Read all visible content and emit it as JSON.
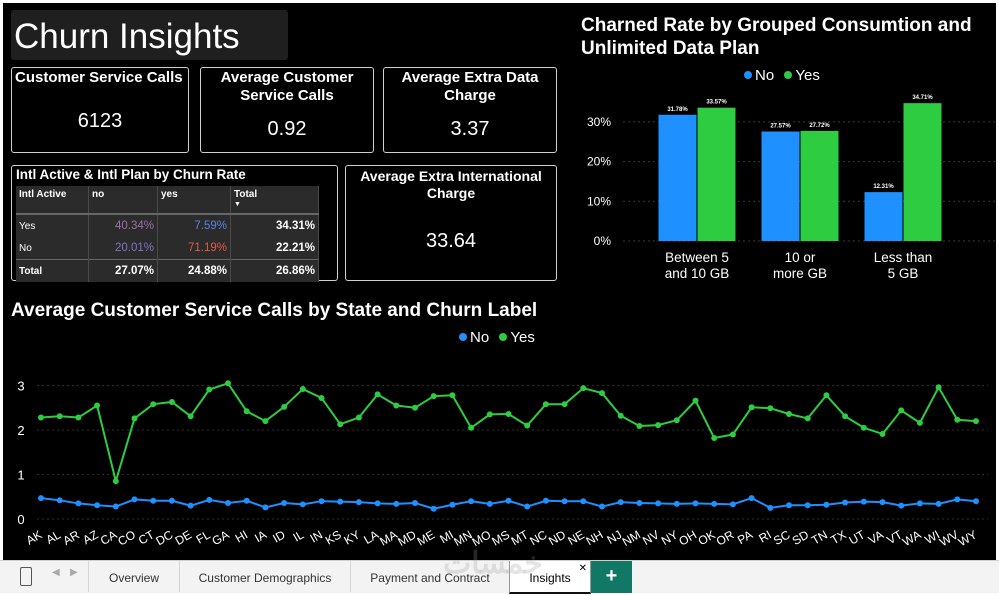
{
  "header": {
    "title": "Churn Insights"
  },
  "kpis": {
    "csc": {
      "label": "Customer Service Calls",
      "value": "6123"
    },
    "avg_csc": {
      "label": "Average Customer Service Calls",
      "value": "0.92"
    },
    "avg_extra_data": {
      "label": "Average Extra Data Charge",
      "value": "3.37"
    },
    "avg_extra_intl": {
      "label": "Average Extra International Charge",
      "value": "33.64"
    }
  },
  "matrix": {
    "title": "Intl Active & Intl Plan by Churn Rate",
    "headers": [
      "Intl Active",
      "no",
      "yes",
      "Total"
    ],
    "rows": [
      {
        "label": "Yes",
        "no": "40.34%",
        "yes": "7.59%",
        "total": "34.31%"
      },
      {
        "label": "No",
        "no": "20.01%",
        "yes": "71.19%",
        "total": "22.21%"
      },
      {
        "label": "Total",
        "no": "27.07%",
        "yes": "24.88%",
        "total": "26.86%"
      }
    ],
    "colors": {
      "no_yes": "#9b6fa8",
      "yes_yes": "#5a82e0",
      "no_no": "#7c74c9",
      "yes_no": "#e45a4a"
    }
  },
  "colors": {
    "no": "#1e90ff",
    "yes": "#2ecc40"
  },
  "chart_data": [
    {
      "type": "bar",
      "title": "Charned Rate by Grouped Consumtion and Unlimited Data Plan",
      "legend": [
        "No",
        "Yes"
      ],
      "categories": [
        "Between 5 and 10 GB",
        "10 or more GB",
        "Less than 5 GB"
      ],
      "series": [
        {
          "name": "No",
          "values": [
            31.78,
            27.57,
            12.31
          ],
          "labels": [
            "31.78%",
            "27.57%",
            "12.31%"
          ]
        },
        {
          "name": "Yes",
          "values": [
            33.57,
            27.72,
            34.71
          ],
          "labels": [
            "33.57%",
            "27.72%",
            "34.71%"
          ]
        }
      ],
      "yticks": [
        "0%",
        "10%",
        "20%",
        "30%"
      ],
      "ylim": [
        0,
        35
      ]
    },
    {
      "type": "line",
      "title": "Average Customer Service Calls by State and Churn Label",
      "legend": [
        "No",
        "Yes"
      ],
      "x": [
        "AK",
        "AL",
        "AR",
        "AZ",
        "CA",
        "CO",
        "CT",
        "DC",
        "DE",
        "FL",
        "GA",
        "HI",
        "IA",
        "ID",
        "IL",
        "IN",
        "KS",
        "KY",
        "LA",
        "MA",
        "MD",
        "ME",
        "MI",
        "MN",
        "MO",
        "MS",
        "MT",
        "NC",
        "ND",
        "NE",
        "NH",
        "NJ",
        "NM",
        "NV",
        "NY",
        "OH",
        "OK",
        "OR",
        "PA",
        "RI",
        "SC",
        "SD",
        "TN",
        "TX",
        "UT",
        "VA",
        "VT",
        "WA",
        "WI",
        "WV",
        "WY"
      ],
      "series": [
        {
          "name": "No",
          "values": [
            0.47,
            0.42,
            0.35,
            0.31,
            0.28,
            0.44,
            0.41,
            0.41,
            0.3,
            0.43,
            0.36,
            0.41,
            0.26,
            0.36,
            0.33,
            0.4,
            0.39,
            0.38,
            0.35,
            0.34,
            0.36,
            0.23,
            0.32,
            0.4,
            0.34,
            0.41,
            0.28,
            0.41,
            0.4,
            0.4,
            0.28,
            0.38,
            0.36,
            0.35,
            0.34,
            0.35,
            0.34,
            0.33,
            0.47,
            0.25,
            0.31,
            0.31,
            0.32,
            0.37,
            0.39,
            0.38,
            0.3,
            0.35,
            0.34,
            0.44,
            0.4
          ]
        },
        {
          "name": "Yes",
          "values": [
            2.28,
            2.31,
            2.28,
            2.55,
            0.85,
            2.26,
            2.58,
            2.63,
            2.31,
            2.91,
            3.05,
            2.42,
            2.2,
            2.52,
            2.92,
            2.72,
            2.13,
            2.28,
            2.8,
            2.55,
            2.5,
            2.76,
            2.78,
            2.05,
            2.35,
            2.36,
            2.1,
            2.58,
            2.58,
            2.94,
            2.83,
            2.32,
            2.09,
            2.11,
            2.22,
            2.66,
            1.82,
            1.9,
            2.51,
            2.49,
            2.36,
            2.26,
            2.78,
            2.31,
            2.05,
            1.91,
            2.44,
            2.16,
            2.96,
            2.23,
            2.2
          ]
        }
      ],
      "yticks": [
        "0",
        "1",
        "2",
        "3"
      ],
      "ylim": [
        0,
        3.3
      ]
    }
  ],
  "tabs": [
    "Overview",
    "Customer Demographics",
    "Payment and Contract",
    "Insights"
  ],
  "watermark": "خمسات"
}
